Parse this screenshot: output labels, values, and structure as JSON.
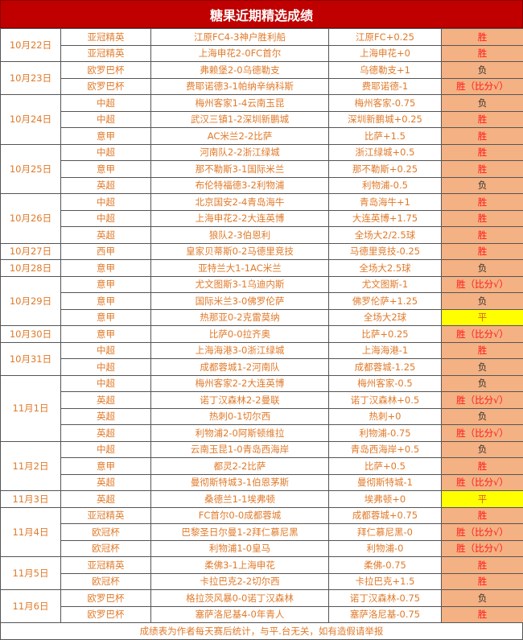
{
  "title": "糖果近期精选成绩",
  "colors": {
    "title_bg": "#c00000",
    "text": "#e07a2a",
    "result_bg": "#f4b183",
    "win_text": "#ff1a1a",
    "draw_bg": "#ffff00"
  },
  "groups": [
    {
      "date": "10月22日",
      "rows": [
        {
          "league": "亚冠精英",
          "match": "江原FC4-3神户胜利船",
          "pick": "江原FC+0.25",
          "result": "胜"
        },
        {
          "league": "亚冠精英",
          "match": "上海申花2-0FC首尔",
          "pick": "上海申花+0",
          "result": "胜"
        }
      ]
    },
    {
      "date": "10月23日",
      "rows": [
        {
          "league": "欧罗巴杯",
          "match": "弗赖堡2-0乌德勒支",
          "pick": "乌德勒支+1",
          "result": "负"
        },
        {
          "league": "欧罗巴杯",
          "match": "费耶诺德3-1帕纳辛纳科斯",
          "pick": "费耶诺德-1",
          "result": "胜（比分√）"
        }
      ]
    },
    {
      "date": "10月24日",
      "rows": [
        {
          "league": "中超",
          "match": "梅州客家1-4云南玉昆",
          "pick": "梅州客家-0.75",
          "result": "负"
        },
        {
          "league": "中超",
          "match": "武汉三镇1-2深圳新鹏城",
          "pick": "深圳新鹏城+0.25",
          "result": "胜"
        },
        {
          "league": "意甲",
          "match": "AC米兰2-2比萨",
          "pick": "比萨+1.5",
          "result": "胜"
        }
      ]
    },
    {
      "date": "10月25日",
      "rows": [
        {
          "league": "中超",
          "match": "河南队2-2浙江绿城",
          "pick": "浙江绿城+0.5",
          "result": "胜"
        },
        {
          "league": "意甲",
          "match": "那不勒斯3-1国际米兰",
          "pick": "那不勒斯+0.25",
          "result": "胜"
        },
        {
          "league": "英超",
          "match": "布伦特福德3-2利物浦",
          "pick": "利物浦-0.5",
          "result": "负"
        }
      ]
    },
    {
      "date": "10月26日",
      "rows": [
        {
          "league": "中超",
          "match": "北京国安2-4青岛海牛",
          "pick": "青岛海牛+1",
          "result": "胜"
        },
        {
          "league": "中超",
          "match": "上海申花2-2大连英博",
          "pick": "大连英博+1.75",
          "result": "胜"
        },
        {
          "league": "英超",
          "match": "狼队2-3伯恩利",
          "pick": "全场大2/2.5球",
          "result": "胜"
        }
      ]
    },
    {
      "date": "10月27日",
      "rows": [
        {
          "league": "西甲",
          "match": "皇家贝蒂斯0-2马德里竞技",
          "pick": "马德里竞技-0.25",
          "result": "胜"
        }
      ]
    },
    {
      "date": "10月28日",
      "rows": [
        {
          "league": "意甲",
          "match": "亚特兰大1-1AC米兰",
          "pick": "全场大2.5球",
          "result": "负"
        }
      ]
    },
    {
      "date": "10月29日",
      "rows": [
        {
          "league": "意甲",
          "match": "尤文图斯3-1乌迪内斯",
          "pick": "尤文图斯-1",
          "result": "胜（比分√）"
        },
        {
          "league": "意甲",
          "match": "国际米兰3-0佛罗伦萨",
          "pick": "佛罗伦萨+1.25",
          "result": "负"
        },
        {
          "league": "意甲",
          "match": "热那亚0-2克雷莫纳",
          "pick": "全场大2球",
          "result": "平"
        }
      ]
    },
    {
      "date": "10月30日",
      "rows": [
        {
          "league": "意甲",
          "match": "比萨0-0拉齐奥",
          "pick": "比萨+0.25",
          "result": "胜（比分√）"
        }
      ]
    },
    {
      "date": "10月31日",
      "rows": [
        {
          "league": "中超",
          "match": "上海海港3-0浙江绿城",
          "pick": "上海海港-1",
          "result": "胜"
        },
        {
          "league": "中超",
          "match": "成都蓉城1-2河南队",
          "pick": "成都蓉城-1.25",
          "result": "负"
        }
      ]
    },
    {
      "date": "11月1日",
      "rows": [
        {
          "league": "中超",
          "match": "梅州客家2-2大连英博",
          "pick": "梅州客家-0.5",
          "result": "负"
        },
        {
          "league": "英超",
          "match": "诺丁汉森林2-2曼联",
          "pick": "诺丁汉森林+0.5",
          "result": "胜（比分√）"
        },
        {
          "league": "英超",
          "match": "热刺0-1切尔西",
          "pick": "热刺+0",
          "result": "负"
        },
        {
          "league": "英超",
          "match": "利物浦2-0阿斯顿维拉",
          "pick": "利物浦-0.75",
          "result": "胜（比分√）"
        }
      ]
    },
    {
      "date": "11月2日",
      "rows": [
        {
          "league": "中超",
          "match": "云南玉昆1-0青岛西海岸",
          "pick": "青岛西海岸+0.5",
          "result": "负"
        },
        {
          "league": "意甲",
          "match": "都灵2-2比萨",
          "pick": "比萨+0.5",
          "result": "胜"
        },
        {
          "league": "英超",
          "match": "曼彻斯特城3-1伯恩茅斯",
          "pick": "曼彻斯特城-1",
          "result": "胜（比分√）"
        }
      ]
    },
    {
      "date": "11月3日",
      "rows": [
        {
          "league": "英超",
          "match": "桑德兰1-1埃弗顿",
          "pick": "埃弗顿+0",
          "result": "平"
        }
      ]
    },
    {
      "date": "11月4日",
      "rows": [
        {
          "league": "亚冠精英",
          "match": "FC首尔0-0成都蓉城",
          "pick": "成都蓉城+0.75",
          "result": "胜"
        },
        {
          "league": "欧冠杯",
          "match": "巴黎圣日尔曼1-2拜仁慕尼黑",
          "pick": "拜仁慕尼黑-0",
          "result": "胜（比分√）"
        },
        {
          "league": "欧冠杯",
          "match": "利物浦1-0皇马",
          "pick": "利物浦-0",
          "result": "胜（比分√）"
        }
      ]
    },
    {
      "date": "11月5日",
      "rows": [
        {
          "league": "亚冠精英",
          "match": "柔佛3-1上海申花",
          "pick": "柔佛-0.75",
          "result": "胜"
        },
        {
          "league": "欧冠杯",
          "match": "卡拉巴克2-2切尔西",
          "pick": "卡拉巴克+1.5",
          "result": "胜"
        }
      ]
    },
    {
      "date": "11月6日",
      "rows": [
        {
          "league": "欧罗巴杯",
          "match": "格拉茨风暴0-0诺丁汉森林",
          "pick": "诺丁汉森林-0.75",
          "result": "负"
        },
        {
          "league": "欧罗巴杯",
          "match": "塞萨洛尼基4-0年青人",
          "pick": "塞萨洛尼基-0.75",
          "result": "胜"
        }
      ]
    }
  ],
  "footer": "成绩表为作者每天赛后统计，与平.台无关，如有造假请举报"
}
